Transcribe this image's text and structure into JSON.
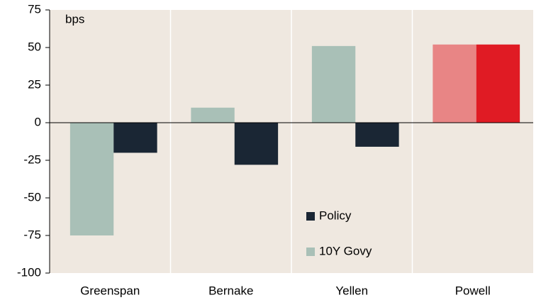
{
  "chart_data": {
    "type": "bar",
    "y_label": "bps",
    "categories": [
      "Greenspan",
      "Bernake",
      "Yellen",
      "Powell"
    ],
    "series": [
      {
        "name": "10Y Govy",
        "color": "#a9c0b7",
        "colors": [
          "#a9c0b7",
          "#a9c0b7",
          "#a9c0b7",
          "#e88585"
        ],
        "values": [
          -75,
          10,
          51,
          52
        ]
      },
      {
        "name": "Policy",
        "color": "#1a2634",
        "colors": [
          "#1a2634",
          "#1a2634",
          "#1a2634",
          "#e01b24"
        ],
        "values": [
          -20,
          -28,
          -16,
          52
        ]
      }
    ],
    "ylim": [
      -100,
      75
    ],
    "yticks": [
      -100,
      -75,
      -50,
      -25,
      0,
      25,
      50,
      75
    ],
    "grid": true,
    "legend": "lower-center",
    "background": "#efe8e0"
  }
}
